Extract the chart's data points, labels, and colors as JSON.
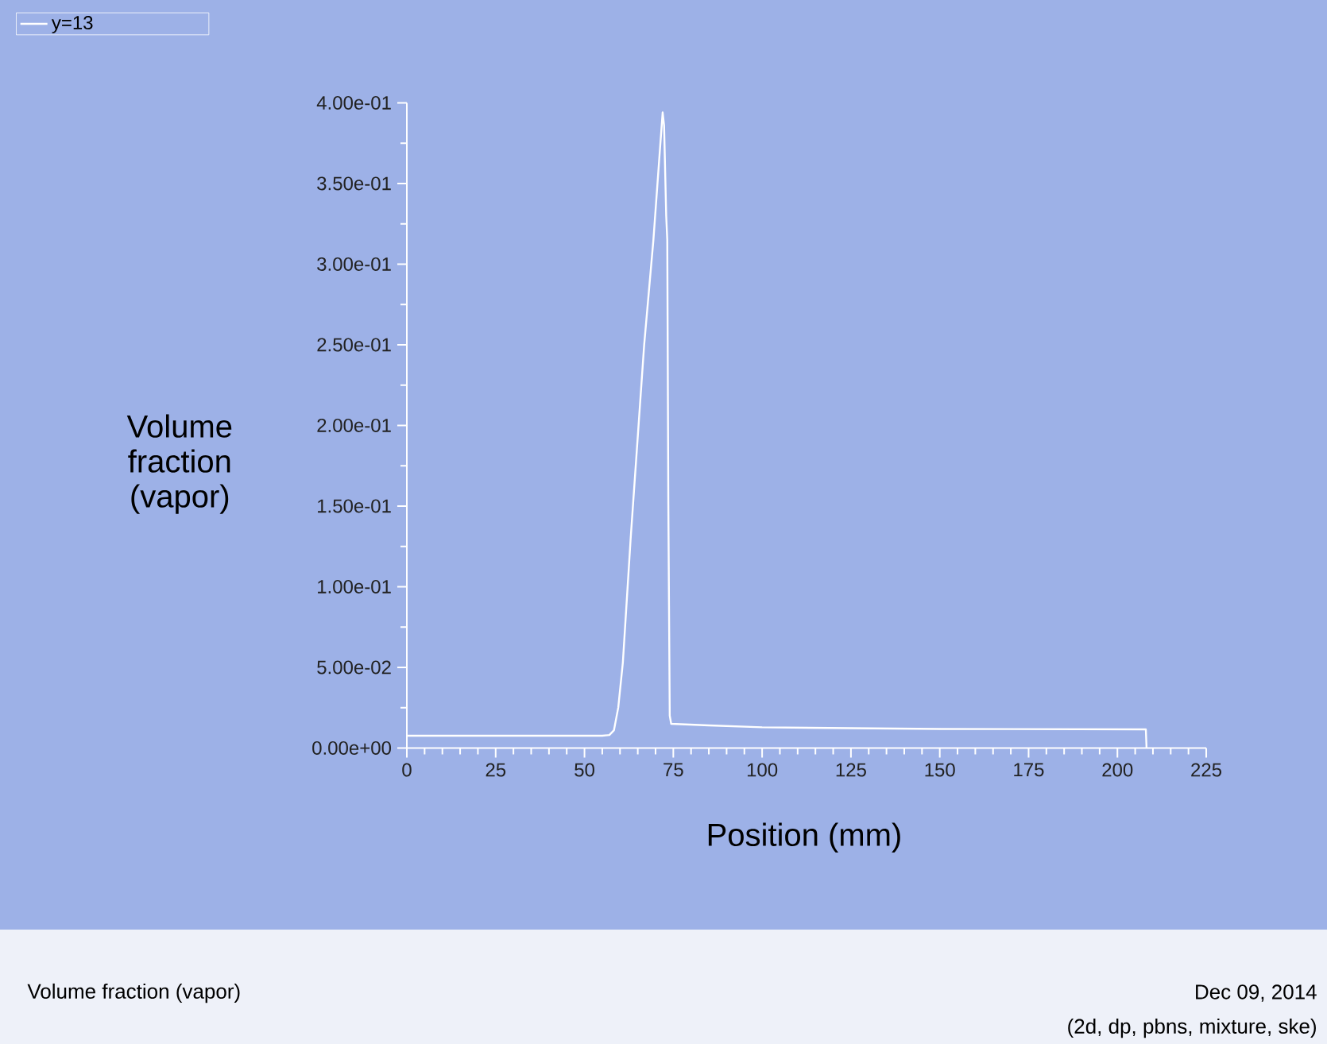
{
  "chart_data": {
    "type": "line",
    "xlabel": "Position (mm)",
    "ylabel": "Volume fraction (vapor)",
    "series": [
      {
        "name": "y=13",
        "color": "#ffffff",
        "x": [
          0,
          55,
          57,
          58.3,
          59.5,
          60.8,
          63,
          66.8,
          69.4,
          71.2,
          72.0,
          72.4,
          73.0,
          73.3,
          73.6,
          74.0,
          74.4,
          85,
          100,
          150,
          208,
          208.2
        ],
        "values": [
          0.0076,
          0.0076,
          0.008,
          0.011,
          0.025,
          0.053,
          0.13,
          0.25,
          0.315,
          0.37,
          0.394,
          0.386,
          0.33,
          0.315,
          0.151,
          0.02,
          0.015,
          0.014,
          0.0128,
          0.0118,
          0.0115,
          0
        ]
      }
    ],
    "xlim": [
      0,
      225
    ],
    "xticks": [
      0,
      25,
      50,
      75,
      100,
      125,
      150,
      175,
      200,
      225
    ],
    "ylim": [
      0,
      0.4
    ],
    "yticks": [
      {
        "value": 0,
        "label": "0.00e+00"
      },
      {
        "value": 0.05,
        "label": "5.00e-02"
      },
      {
        "value": 0.1,
        "label": "1.00e-01"
      },
      {
        "value": 0.15,
        "label": "1.50e-01"
      },
      {
        "value": 0.2,
        "label": "2.00e-01"
      },
      {
        "value": 0.25,
        "label": "2.50e-01"
      },
      {
        "value": 0.3,
        "label": "3.00e-01"
      },
      {
        "value": 0.35,
        "label": "3.50e-01"
      },
      {
        "value": 0.4,
        "label": "4.00e-01"
      }
    ],
    "legend": "top left",
    "line_style": "solid",
    "annotations": [
      "Volume fraction (vapor)",
      "Dec 09, 2014",
      "(2d, dp, pbns, mixture, ske)"
    ]
  }
}
